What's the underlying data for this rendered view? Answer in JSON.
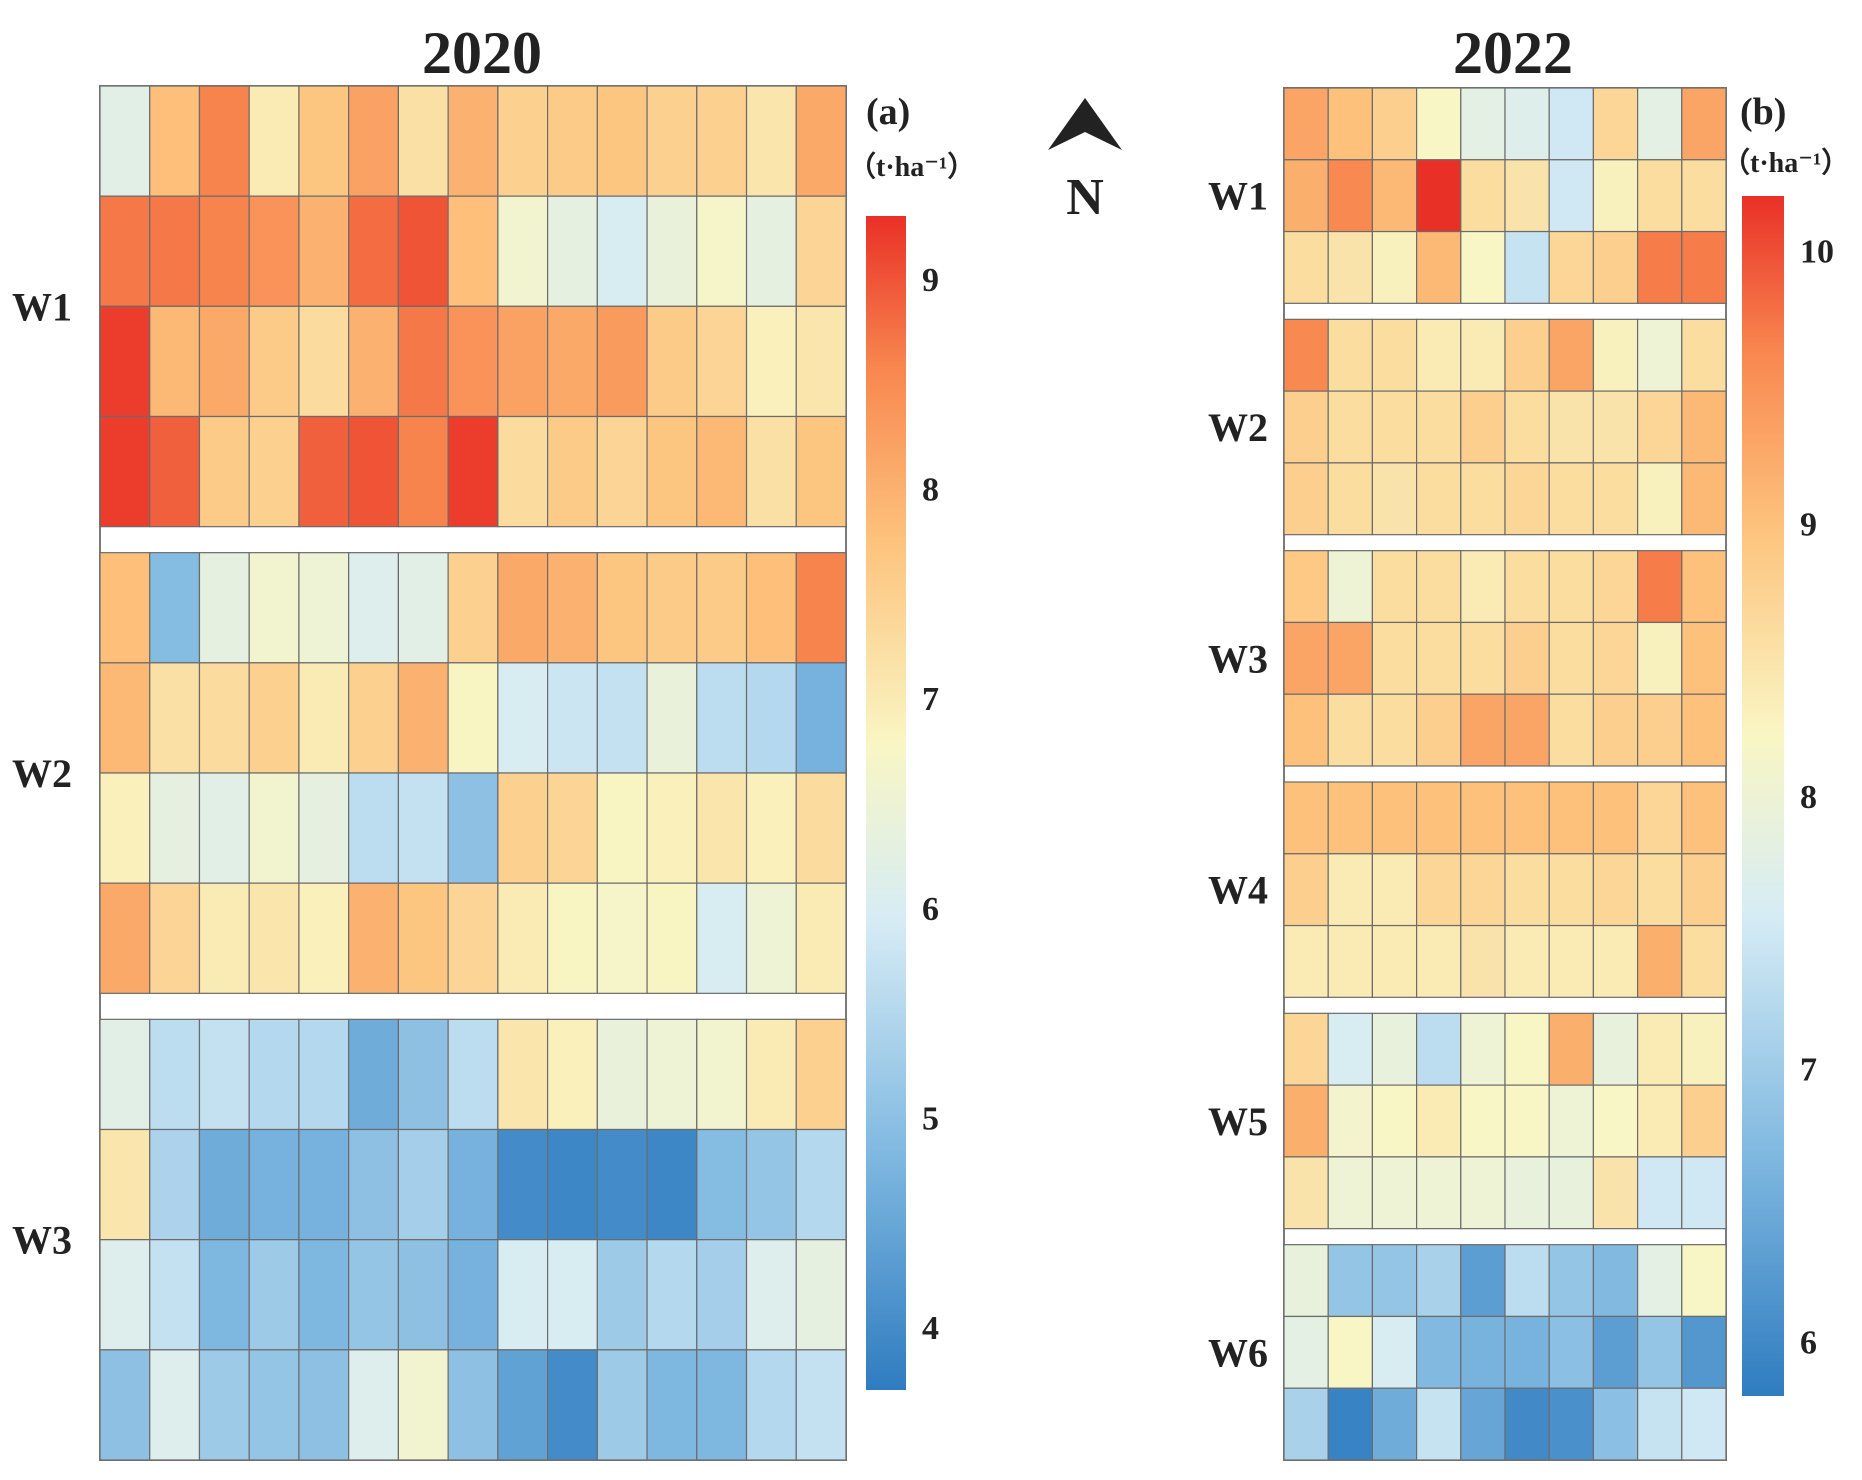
{
  "north_arrow": {
    "label": "N"
  },
  "chart_data": [
    {
      "type": "heatmap",
      "title": "2020",
      "panel_label": "(a)",
      "unit_label": "（t·ha⁻¹）",
      "colorbar": {
        "min": 3.7,
        "max": 9.3,
        "ticks": [
          4,
          5,
          6,
          7,
          8,
          9
        ]
      },
      "columns": 15,
      "groups": [
        {
          "name": "W1",
          "rows": [
            [
              6.2,
              7.8,
              8.6,
              7.0,
              7.7,
              8.2,
              7.2,
              8.0,
              7.5,
              7.6,
              7.7,
              7.5,
              7.5,
              7.1,
              8.1
            ],
            [
              8.7,
              8.7,
              8.6,
              8.4,
              8.0,
              8.8,
              9.0,
              7.8,
              6.6,
              6.3,
              6.0,
              6.4,
              6.7,
              6.3,
              7.4
            ],
            [
              9.2,
              7.9,
              8.1,
              7.6,
              7.3,
              8.0,
              8.7,
              8.4,
              8.2,
              8.1,
              8.3,
              7.6,
              7.4,
              6.9,
              7.1
            ],
            [
              9.2,
              8.9,
              7.6,
              7.5,
              8.9,
              9.0,
              8.6,
              9.2,
              7.3,
              7.6,
              7.4,
              7.7,
              7.9,
              7.2,
              7.7
            ]
          ]
        },
        {
          "name": "W2",
          "rows": [
            [
              7.8,
              4.9,
              6.3,
              6.6,
              6.5,
              6.1,
              6.2,
              7.5,
              8.1,
              8.0,
              7.7,
              7.6,
              7.6,
              7.8,
              8.6
            ],
            [
              7.9,
              7.2,
              7.3,
              7.5,
              7.0,
              7.5,
              8.0,
              6.8,
              6.0,
              5.8,
              5.7,
              6.4,
              5.6,
              5.5,
              4.7
            ],
            [
              6.9,
              6.3,
              6.2,
              6.6,
              6.3,
              5.6,
              5.7,
              5.0,
              7.5,
              7.4,
              6.8,
              6.9,
              7.1,
              6.9,
              7.3
            ],
            [
              8.1,
              7.4,
              7.0,
              7.1,
              6.9,
              8.0,
              7.7,
              7.4,
              7.0,
              6.8,
              6.7,
              6.8,
              6.0,
              6.5,
              7.0
            ]
          ]
        },
        {
          "name": "W3",
          "rows": [
            [
              6.2,
              5.6,
              5.7,
              5.5,
              5.5,
              4.6,
              5.0,
              5.6,
              7.1,
              6.9,
              6.4,
              6.5,
              6.6,
              7.0,
              7.5
            ],
            [
              7.1,
              5.4,
              4.6,
              4.7,
              4.7,
              5.0,
              5.3,
              4.7,
              4.0,
              3.9,
              4.0,
              3.9,
              4.9,
              5.1,
              5.5
            ],
            [
              6.1,
              5.7,
              4.8,
              5.2,
              4.8,
              5.1,
              5.0,
              4.7,
              6.0,
              6.0,
              5.2,
              5.5,
              5.3,
              6.1,
              6.3
            ],
            [
              5.0,
              6.1,
              5.2,
              5.1,
              5.0,
              6.1,
              6.6,
              5.0,
              4.4,
              4.0,
              5.2,
              4.8,
              4.8,
              5.5,
              5.7
            ]
          ]
        }
      ]
    },
    {
      "type": "heatmap",
      "title": "2022",
      "panel_label": "(b)",
      "unit_label": "（t·ha⁻¹）",
      "colorbar": {
        "min": 5.8,
        "max": 10.2,
        "ticks": [
          6,
          7,
          8,
          9,
          10
        ]
      },
      "columns": 10,
      "groups": [
        {
          "name": "W1",
          "rows": [
            [
              9.3,
              9.0,
              8.8,
              8.2,
              7.8,
              7.7,
              7.5,
              8.7,
              7.8,
              9.3
            ],
            [
              9.2,
              9.6,
              9.1,
              10.2,
              8.6,
              8.5,
              7.5,
              8.3,
              8.6,
              8.6
            ],
            [
              8.6,
              8.5,
              8.3,
              9.1,
              8.2,
              7.4,
              8.7,
              8.8,
              9.7,
              9.7
            ]
          ]
        },
        {
          "name": "W2",
          "rows": [
            [
              9.6,
              8.6,
              8.6,
              8.4,
              8.4,
              8.8,
              9.3,
              8.3,
              8.0,
              8.6
            ],
            [
              8.8,
              8.6,
              8.6,
              8.6,
              8.8,
              8.6,
              8.5,
              8.5,
              8.7,
              9.1
            ],
            [
              8.8,
              8.6,
              8.5,
              8.6,
              8.6,
              8.7,
              8.6,
              8.6,
              8.3,
              9.1
            ]
          ]
        },
        {
          "name": "W3",
          "rows": [
            [
              8.9,
              8.0,
              8.6,
              8.6,
              8.4,
              8.6,
              8.6,
              8.7,
              9.7,
              9.0
            ],
            [
              9.3,
              9.3,
              8.6,
              8.6,
              8.6,
              8.8,
              8.6,
              8.7,
              8.3,
              9.0
            ],
            [
              9.0,
              8.6,
              8.6,
              8.8,
              9.3,
              9.3,
              8.6,
              8.8,
              8.8,
              9.0
            ]
          ]
        },
        {
          "name": "W4",
          "rows": [
            [
              9.0,
              9.0,
              9.0,
              9.0,
              9.0,
              9.0,
              9.0,
              9.0,
              8.7,
              9.0
            ],
            [
              8.8,
              8.4,
              8.4,
              8.7,
              8.7,
              8.6,
              8.6,
              8.7,
              8.6,
              8.8
            ],
            [
              8.4,
              8.4,
              8.4,
              8.4,
              8.5,
              8.4,
              8.4,
              8.4,
              9.2,
              8.6
            ]
          ]
        },
        {
          "name": "W5",
          "rows": [
            [
              8.7,
              7.6,
              7.9,
              7.3,
              8.0,
              8.2,
              9.2,
              7.9,
              8.4,
              8.3
            ],
            [
              9.2,
              8.1,
              8.2,
              8.4,
              8.2,
              8.2,
              8.0,
              8.2,
              8.4,
              8.8
            ],
            [
              8.5,
              8.0,
              8.0,
              8.0,
              8.0,
              7.9,
              7.9,
              8.5,
              7.5,
              7.5
            ]
          ]
        },
        {
          "name": "W6",
          "rows": [
            [
              7.9,
              6.9,
              6.9,
              7.1,
              6.3,
              7.3,
              6.9,
              6.7,
              7.8,
              8.2
            ],
            [
              7.8,
              8.2,
              7.6,
              6.7,
              6.6,
              6.6,
              6.8,
              6.3,
              6.9,
              6.2
            ],
            [
              7.1,
              5.9,
              6.5,
              7.4,
              6.4,
              6.0,
              6.1,
              6.8,
              7.4,
              7.5
            ]
          ]
        }
      ]
    }
  ]
}
